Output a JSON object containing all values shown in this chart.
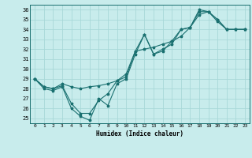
{
  "xlabel": "Humidex (Indice chaleur)",
  "bg_color": "#c8ecec",
  "grid_color": "#a8d8d8",
  "line_color": "#1a7070",
  "xlim": [
    -0.5,
    23.5
  ],
  "ylim": [
    24.5,
    36.5
  ],
  "xticks": [
    0,
    1,
    2,
    3,
    4,
    5,
    6,
    7,
    8,
    9,
    10,
    11,
    12,
    13,
    14,
    15,
    16,
    17,
    18,
    19,
    20,
    21,
    22,
    23
  ],
  "yticks": [
    25,
    26,
    27,
    28,
    29,
    30,
    31,
    32,
    33,
    34,
    35,
    36
  ],
  "series": [
    {
      "x": [
        0,
        1,
        2,
        3,
        4,
        5,
        6,
        7,
        8,
        9,
        10,
        11,
        12,
        13,
        14,
        15,
        16,
        17,
        18,
        19,
        20,
        21,
        22,
        23
      ],
      "y": [
        29.0,
        28.0,
        27.8,
        28.2,
        26.0,
        25.2,
        24.8,
        27.0,
        26.3,
        28.5,
        29.0,
        31.5,
        33.5,
        31.5,
        32.0,
        32.5,
        34.0,
        34.2,
        36.0,
        35.8,
        34.8,
        34.0,
        34.0,
        34.0
      ]
    },
    {
      "x": [
        0,
        1,
        2,
        3,
        4,
        5,
        6,
        7,
        8,
        9,
        10,
        11,
        12,
        13,
        14,
        15,
        16,
        17,
        18,
        19,
        20,
        21,
        22,
        23
      ],
      "y": [
        29.0,
        28.2,
        28.0,
        28.5,
        28.2,
        28.0,
        28.2,
        28.3,
        28.5,
        28.8,
        29.2,
        31.8,
        32.0,
        32.2,
        32.5,
        32.8,
        33.3,
        34.2,
        35.5,
        35.8,
        35.0,
        34.0,
        34.0,
        34.0
      ]
    },
    {
      "x": [
        0,
        1,
        2,
        3,
        4,
        5,
        6,
        7,
        8,
        9,
        10,
        11,
        12,
        13,
        14,
        15,
        16,
        17,
        18,
        19,
        20,
        21,
        22,
        23
      ],
      "y": [
        29.0,
        28.2,
        28.0,
        28.3,
        26.5,
        25.5,
        25.5,
        26.8,
        27.5,
        28.8,
        29.5,
        31.8,
        33.5,
        31.5,
        31.8,
        32.8,
        34.0,
        34.2,
        35.8,
        35.8,
        35.0,
        34.0,
        34.0,
        34.0
      ]
    }
  ]
}
